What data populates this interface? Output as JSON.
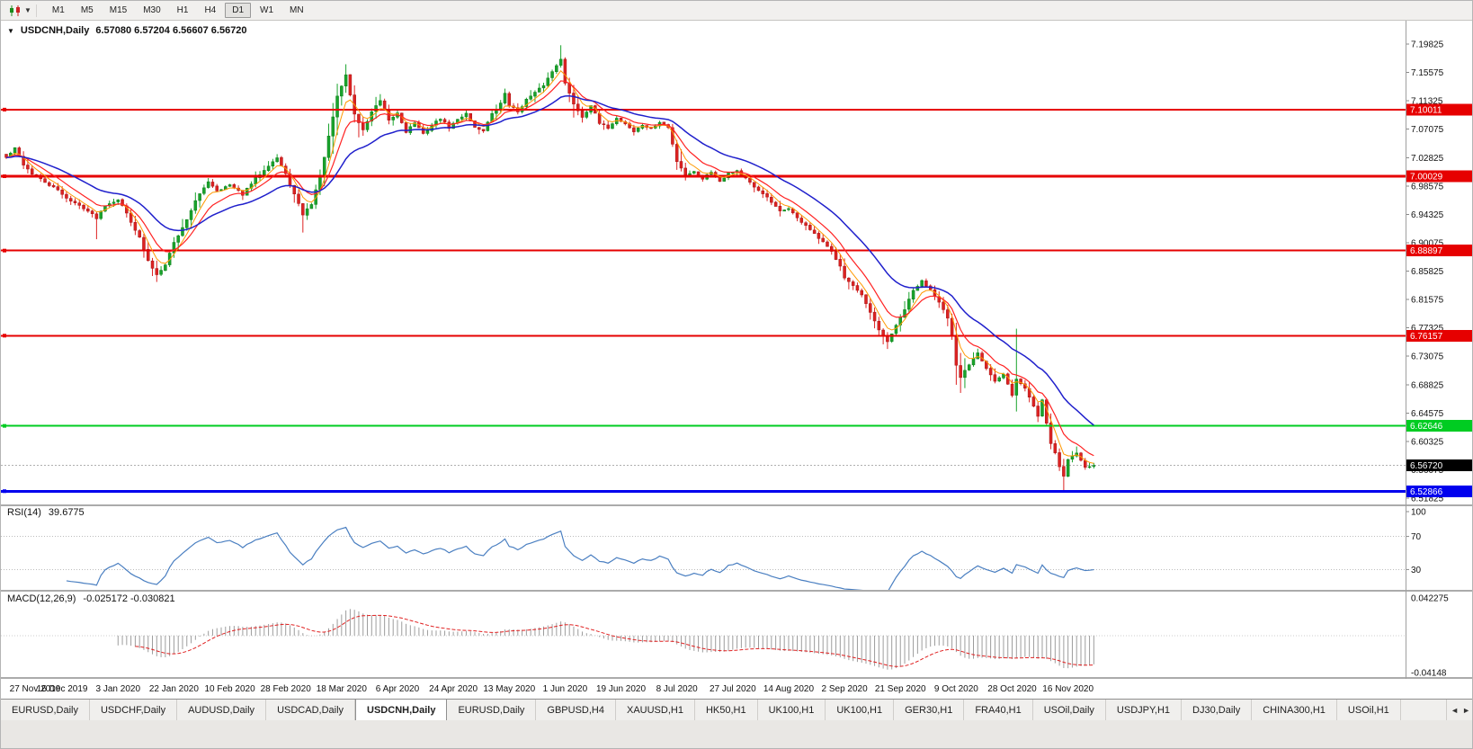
{
  "toolbar": {
    "timeframes": [
      "M1",
      "M5",
      "M15",
      "M30",
      "H1",
      "H4",
      "D1",
      "W1",
      "MN"
    ],
    "active_timeframe": "D1"
  },
  "chart": {
    "title": "USDCNH,Daily",
    "ohlc": "6.57080 6.57204 6.56607 6.56720"
  },
  "current_price": {
    "label": "6.56720",
    "value": 6.5672,
    "badge_color": "#000000"
  },
  "levels": [
    {
      "label": "7.10011",
      "price": 7.10011,
      "color": "#e60000",
      "width": 2
    },
    {
      "label": "7.00029",
      "price": 7.00029,
      "color": "#e60000",
      "width": 3
    },
    {
      "label": "6.88897",
      "price": 6.88897,
      "color": "#e60000",
      "width": 2
    },
    {
      "label": "6.76157",
      "price": 6.76157,
      "color": "#e60000",
      "width": 2
    },
    {
      "label": "6.62646",
      "price": 6.62646,
      "color": "#00cc22",
      "width": 2
    },
    {
      "label": "6.52866",
      "price": 6.52866,
      "color": "#0000ee",
      "width": 3
    }
  ],
  "rsi": {
    "label": "RSI(14)",
    "value": "39.6775",
    "axis_labels": [
      "100",
      "70",
      "30"
    ],
    "guide_levels": [
      70,
      30
    ],
    "color": "#4a7fc1"
  },
  "macd": {
    "label": "MACD(12,26,9)",
    "values": "-0.025172 -0.030821",
    "axis_top": "0.042275",
    "axis_bottom": "-0.04148",
    "hist_color": "#9c9c9c",
    "signal_color": "#e02020"
  },
  "tabs": {
    "items": [
      "EURUSD,Daily",
      "USDCHF,Daily",
      "AUDUSD,Daily",
      "USDCAD,Daily",
      "USDCNH,Daily",
      "EURUSD,Daily",
      "GBPUSD,H4",
      "XAUUSD,H1",
      "HK50,H1",
      "UK100,H1",
      "UK100,H1",
      "GER30,H1",
      "FRA40,H1",
      "USOil,Daily",
      "USDJPY,H1",
      "DJ30,Daily",
      "CHINA300,H1",
      "USOil,H1"
    ],
    "active_index": 4,
    "scroll_left": "◄",
    "scroll_right": "►"
  },
  "chart_data": {
    "type": "candlestick",
    "symbol": "USDCNH",
    "timeframe": "Daily",
    "price_max": 7.19825,
    "price_min": 6.51825,
    "y_ticks": [
      "7.19825",
      "7.15575",
      "7.11325",
      "7.07075",
      "7.02825",
      "6.98575",
      "6.94325",
      "6.90075",
      "6.85825",
      "6.81575",
      "6.77325",
      "6.73075",
      "6.68825",
      "6.64575",
      "6.60325",
      "6.56075",
      "6.51825"
    ],
    "x_labels": [
      "27 Nov 2019",
      "16 Dec 2019",
      "3 Jan 2020",
      "22 Jan 2020",
      "10 Feb 2020",
      "28 Feb 2020",
      "18 Mar 2020",
      "6 Apr 2020",
      "24 Apr 2020",
      "13 May 2020",
      "1 Jun 2020",
      "19 Jun 2020",
      "8 Jul 2020",
      "27 Jul 2020",
      "14 Aug 2020",
      "2 Sep 2020",
      "21 Sep 2020",
      "9 Oct 2020",
      "28 Oct 2020",
      "16 Nov 2020"
    ],
    "bars_per_label": 13,
    "last_candle": {
      "open": "6.57080",
      "high": "6.57204",
      "low": "6.56607",
      "close": "6.56720"
    },
    "candle_colors": {
      "up": "#19a32c",
      "up_stroke": "#0c7d18",
      "down": "#dd2222",
      "down_stroke": "#a31414"
    },
    "moving_averages": [
      {
        "period": 5,
        "color": "#ff9900",
        "width": 1
      },
      {
        "period": 10,
        "color": "#ff2222",
        "width": 1.2
      },
      {
        "period": 25,
        "color": "#2020cc",
        "width": 1.5
      }
    ],
    "anchors": [
      [
        0,
        7.028
      ],
      [
        2,
        7.042
      ],
      [
        4,
        7.018
      ],
      [
        6,
        7.004
      ],
      [
        9,
        6.991
      ],
      [
        12,
        6.979
      ],
      [
        15,
        6.963
      ],
      [
        18,
        6.953
      ],
      [
        21,
        6.938
      ],
      [
        23,
        6.957
      ],
      [
        26,
        6.966
      ],
      [
        28,
        6.945
      ],
      [
        31,
        6.908
      ],
      [
        33,
        6.873
      ],
      [
        35,
        6.853
      ],
      [
        37,
        6.869
      ],
      [
        39,
        6.901
      ],
      [
        41,
        6.923
      ],
      [
        44,
        6.963
      ],
      [
        47,
        6.993
      ],
      [
        49,
        6.979
      ],
      [
        52,
        6.987
      ],
      [
        55,
        6.973
      ],
      [
        58,
        6.997
      ],
      [
        61,
        7.017
      ],
      [
        63,
        7.028
      ],
      [
        65,
        7.003
      ],
      [
        67,
        6.973
      ],
      [
        69,
        6.943
      ],
      [
        71,
        6.959
      ],
      [
        73,
        7.001
      ],
      [
        75,
        7.059
      ],
      [
        77,
        7.119
      ],
      [
        79,
        7.152
      ],
      [
        81,
        7.093
      ],
      [
        83,
        7.069
      ],
      [
        85,
        7.097
      ],
      [
        87,
        7.113
      ],
      [
        89,
        7.083
      ],
      [
        91,
        7.095
      ],
      [
        93,
        7.067
      ],
      [
        95,
        7.081
      ],
      [
        97,
        7.063
      ],
      [
        99,
        7.077
      ],
      [
        101,
        7.087
      ],
      [
        103,
        7.073
      ],
      [
        105,
        7.085
      ],
      [
        107,
        7.095
      ],
      [
        109,
        7.073
      ],
      [
        111,
        7.069
      ],
      [
        113,
        7.093
      ],
      [
        115,
        7.109
      ],
      [
        116,
        7.125
      ],
      [
        117,
        7.107
      ],
      [
        119,
        7.097
      ],
      [
        121,
        7.115
      ],
      [
        123,
        7.125
      ],
      [
        125,
        7.137
      ],
      [
        127,
        7.157
      ],
      [
        129,
        7.177
      ],
      [
        130,
        7.139
      ],
      [
        132,
        7.109
      ],
      [
        134,
        7.089
      ],
      [
        136,
        7.107
      ],
      [
        138,
        7.079
      ],
      [
        140,
        7.073
      ],
      [
        142,
        7.087
      ],
      [
        144,
        7.079
      ],
      [
        146,
        7.067
      ],
      [
        148,
        7.077
      ],
      [
        150,
        7.071
      ],
      [
        152,
        7.081
      ],
      [
        154,
        7.073
      ],
      [
        156,
        7.023
      ],
      [
        158,
        7.003
      ],
      [
        160,
        7.007
      ],
      [
        162,
        6.997
      ],
      [
        164,
        7.007
      ],
      [
        166,
        6.993
      ],
      [
        168,
        7.005
      ],
      [
        170,
        7.009
      ],
      [
        172,
        6.997
      ],
      [
        174,
        6.983
      ],
      [
        176,
        6.975
      ],
      [
        178,
        6.961
      ],
      [
        180,
        6.947
      ],
      [
        182,
        6.953
      ],
      [
        184,
        6.937
      ],
      [
        186,
        6.927
      ],
      [
        188,
        6.913
      ],
      [
        190,
        6.901
      ],
      [
        192,
        6.887
      ],
      [
        194,
        6.867
      ],
      [
        195,
        6.849
      ],
      [
        197,
        6.836
      ],
      [
        199,
        6.821
      ],
      [
        201,
        6.796
      ],
      [
        203,
        6.769
      ],
      [
        205,
        6.753
      ],
      [
        207,
        6.776
      ],
      [
        209,
        6.801
      ],
      [
        211,
        6.829
      ],
      [
        213,
        6.843
      ],
      [
        215,
        6.831
      ],
      [
        217,
        6.813
      ],
      [
        219,
        6.787
      ],
      [
        220,
        6.761
      ],
      [
        221,
        6.716
      ],
      [
        222,
        6.699
      ],
      [
        224,
        6.719
      ],
      [
        226,
        6.737
      ],
      [
        228,
        6.713
      ],
      [
        230,
        6.693
      ],
      [
        232,
        6.703
      ],
      [
        234,
        6.673
      ],
      [
        235,
        6.696
      ],
      [
        237,
        6.683
      ],
      [
        239,
        6.656
      ],
      [
        240,
        6.641
      ],
      [
        241,
        6.666
      ],
      [
        242,
        6.631
      ],
      [
        243,
        6.601
      ],
      [
        244,
        6.586
      ],
      [
        245,
        6.566
      ],
      [
        246,
        6.551
      ],
      [
        247,
        6.576
      ],
      [
        249,
        6.586
      ],
      [
        251,
        6.566
      ],
      [
        253,
        6.5672
      ]
    ],
    "spikes": [
      {
        "i": 21,
        "l": 6.906
      },
      {
        "i": 35,
        "l": 6.842
      },
      {
        "i": 69,
        "l": 6.916
      },
      {
        "i": 79,
        "h": 7.168
      },
      {
        "i": 129,
        "h": 7.1965
      },
      {
        "i": 205,
        "l": 6.744
      },
      {
        "i": 221,
        "l": 6.688
      },
      {
        "i": 235,
        "h": 6.772,
        "l": 6.648
      },
      {
        "i": 246,
        "l": 6.5289
      }
    ]
  }
}
